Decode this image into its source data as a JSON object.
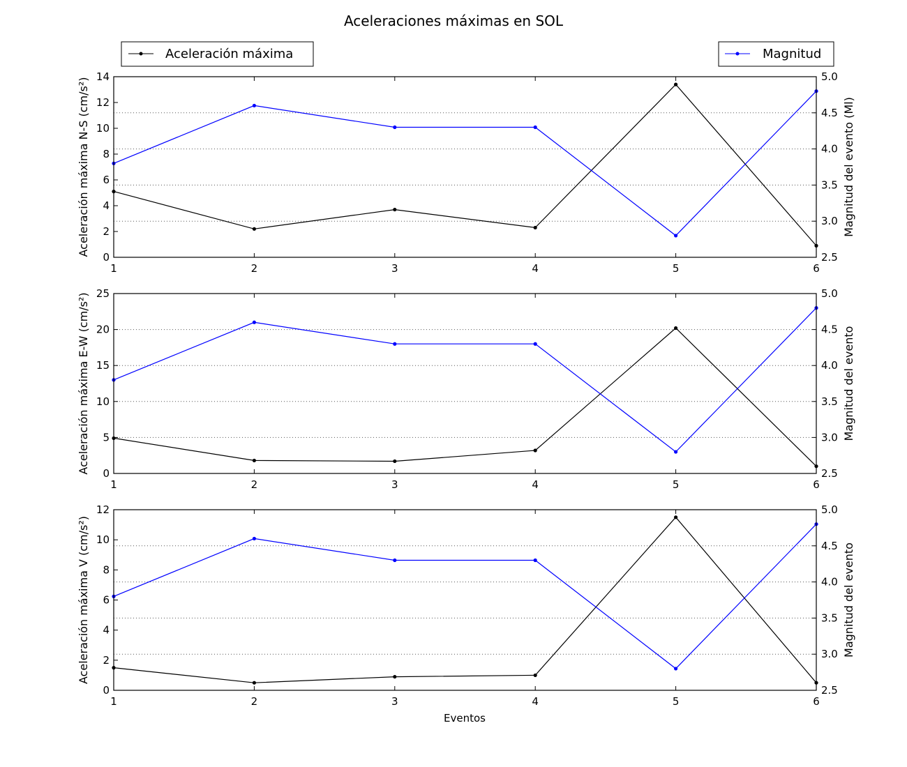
{
  "figure": {
    "title": "Aceleraciones máximas en SOL",
    "legend_left": "Aceleración máxima",
    "legend_right": "Magnitud",
    "xlabel": "Eventos"
  },
  "colors": {
    "acceleration": "#000000",
    "magnitude": "#0000ff",
    "grid": "#555555"
  },
  "chart_data": [
    {
      "type": "line",
      "x": [
        1,
        2,
        3,
        4,
        5,
        6
      ],
      "ylabel": "Aceleración máxima N-S (cm/s²)",
      "ylabel_right": "Magnitud del evento (Ml)",
      "xlabel": "",
      "xlim": [
        1,
        6
      ],
      "ylim": [
        0,
        14
      ],
      "yticks": [
        0,
        2,
        4,
        6,
        8,
        10,
        12,
        14
      ],
      "ylim_right": [
        2.5,
        5.0
      ],
      "yticks_right": [
        "2.5",
        "3.0",
        "3.5",
        "4.0",
        "4.5",
        "5.0"
      ],
      "grid": "horizontal dotted, right axis",
      "series": [
        {
          "name": "Aceleración máxima",
          "axis": "left",
          "values": [
            5.1,
            2.2,
            3.7,
            2.3,
            13.4,
            0.9
          ]
        },
        {
          "name": "Magnitud",
          "axis": "right",
          "values": [
            3.8,
            4.6,
            4.3,
            4.3,
            2.8,
            4.8
          ]
        }
      ]
    },
    {
      "type": "line",
      "x": [
        1,
        2,
        3,
        4,
        5,
        6
      ],
      "ylabel": "Aceleración máxima E-W (cm/s²)",
      "ylabel_right": "Magnitud del evento",
      "xlabel": "",
      "xlim": [
        1,
        6
      ],
      "ylim": [
        0,
        25
      ],
      "yticks": [
        0,
        5,
        10,
        15,
        20,
        25
      ],
      "ylim_right": [
        2.5,
        5.0
      ],
      "yticks_right": [
        "2.5",
        "3.0",
        "3.5",
        "4.0",
        "4.5",
        "5.0"
      ],
      "grid": "horizontal dotted, right axis",
      "series": [
        {
          "name": "Aceleración máxima",
          "axis": "left",
          "values": [
            4.9,
            1.8,
            1.7,
            3.2,
            20.2,
            1.0
          ]
        },
        {
          "name": "Magnitud",
          "axis": "right",
          "values": [
            3.8,
            4.6,
            4.3,
            4.3,
            2.8,
            4.8
          ]
        }
      ]
    },
    {
      "type": "line",
      "x": [
        1,
        2,
        3,
        4,
        5,
        6
      ],
      "ylabel": "Aceleración máxima V (cm/s²)",
      "ylabel_right": "Magnitud del evento",
      "xlabel": "Eventos",
      "xlim": [
        1,
        6
      ],
      "ylim": [
        0,
        12
      ],
      "yticks": [
        0,
        2,
        4,
        6,
        8,
        10,
        12
      ],
      "ylim_right": [
        2.5,
        5.0
      ],
      "yticks_right": [
        "2.5",
        "3.0",
        "3.5",
        "4.0",
        "4.5",
        "5.0"
      ],
      "grid": "horizontal dotted, right axis",
      "series": [
        {
          "name": "Aceleración máxima",
          "axis": "left",
          "values": [
            1.5,
            0.5,
            0.9,
            1.0,
            11.5,
            0.5
          ]
        },
        {
          "name": "Magnitud",
          "axis": "right",
          "values": [
            3.8,
            4.6,
            4.3,
            4.3,
            2.8,
            4.8
          ]
        }
      ]
    }
  ]
}
